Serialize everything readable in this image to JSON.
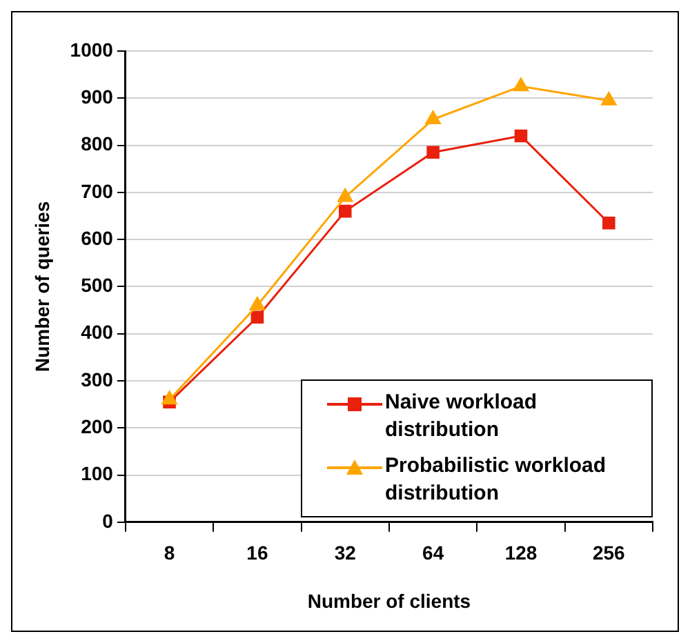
{
  "chart_data": {
    "type": "line",
    "xlabel": "Number of clients",
    "ylabel": "Number of queries",
    "categories": [
      "8",
      "16",
      "32",
      "64",
      "128",
      "256"
    ],
    "series": [
      {
        "name": "Naive workload distribution",
        "color": "#e8200c",
        "marker": "square",
        "values": [
          255,
          435,
          660,
          785,
          820,
          635
        ]
      },
      {
        "name": "Probabilistic workload distribution",
        "color": "#ffa500",
        "marker": "triangle",
        "values": [
          260,
          460,
          690,
          855,
          925,
          895
        ]
      }
    ],
    "ylim": [
      0,
      1000
    ],
    "yticks": [
      0,
      100,
      200,
      300,
      400,
      500,
      600,
      700,
      800,
      900,
      1000
    ],
    "grid": "y",
    "legend": "bottom right",
    "line_style": "solid"
  }
}
